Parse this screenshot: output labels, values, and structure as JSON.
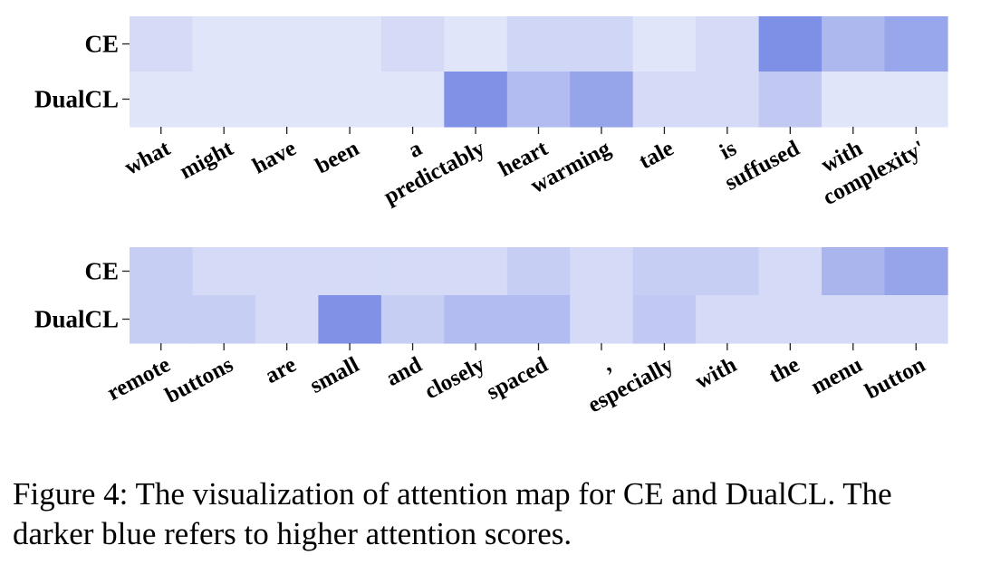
{
  "chart_data": [
    {
      "type": "heatmap",
      "rows": [
        "CE",
        "DualCL"
      ],
      "tokens": [
        "what",
        "might",
        "have",
        "been",
        "a",
        "predictably",
        "heart",
        "warming",
        "tale",
        "is",
        "suffused",
        "with",
        "complexity'"
      ],
      "values": [
        [
          0.18,
          0.08,
          0.08,
          0.08,
          0.18,
          0.08,
          0.22,
          0.22,
          0.08,
          0.18,
          0.92,
          0.52,
          0.7
        ],
        [
          0.08,
          0.08,
          0.08,
          0.08,
          0.08,
          0.9,
          0.48,
          0.72,
          0.18,
          0.18,
          0.35,
          0.08,
          0.08
        ]
      ]
    },
    {
      "type": "heatmap",
      "rows": [
        "CE",
        "DualCL"
      ],
      "tokens": [
        "remote",
        "buttons",
        "are",
        "small",
        "and",
        "closely",
        "spaced",
        ",",
        "especially",
        "with",
        "the",
        "menu",
        "button"
      ],
      "values": [
        [
          0.3,
          0.18,
          0.18,
          0.18,
          0.18,
          0.18,
          0.3,
          0.18,
          0.3,
          0.3,
          0.18,
          0.55,
          0.72
        ],
        [
          0.3,
          0.3,
          0.18,
          0.9,
          0.3,
          0.48,
          0.48,
          0.18,
          0.35,
          0.18,
          0.18,
          0.18,
          0.18
        ]
      ]
    }
  ],
  "colors": {
    "low": "#eaedfb",
    "high": "#7587e4"
  },
  "caption": {
    "line1": "Figure 4: The visualization of attention map for CE and DualCL. The",
    "line2": "darker blue refers to higher attention scores."
  }
}
